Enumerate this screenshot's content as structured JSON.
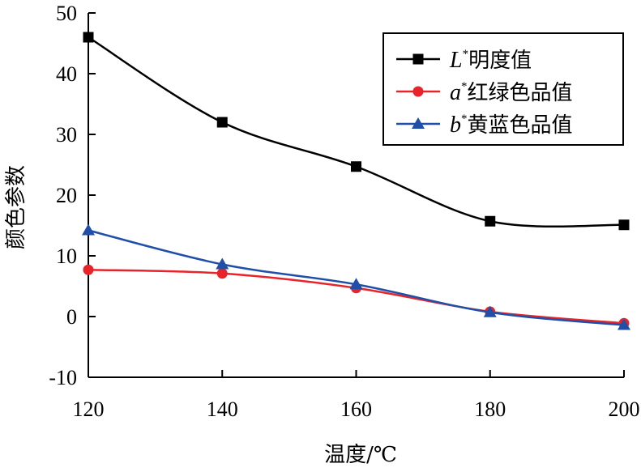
{
  "chart_data": {
    "type": "line",
    "title": "",
    "xlabel": "温度/℃",
    "ylabel": "颜色参数",
    "x": [
      120,
      140,
      160,
      180,
      200
    ],
    "xlim": [
      120,
      200
    ],
    "ylim": [
      -10,
      50
    ],
    "xticks": [
      "120",
      "140",
      "160",
      "180",
      "200"
    ],
    "yticks": [
      "-10",
      "0",
      "10",
      "20",
      "30",
      "40",
      "50"
    ],
    "grid": false,
    "legend_position": "top-right",
    "smooth": true,
    "series": [
      {
        "name_var": "L",
        "name_sup": "*",
        "name_text": "明度值",
        "marker": "square",
        "color": "#000000",
        "values": [
          46,
          32,
          24.7,
          15.7,
          15.1
        ]
      },
      {
        "name_var": "a",
        "name_sup": "*",
        "name_text": "红绿色品值",
        "marker": "circle",
        "color": "#e8242a",
        "values": [
          7.7,
          7.1,
          4.7,
          0.8,
          -1.1
        ]
      },
      {
        "name_var": "b",
        "name_sup": "*",
        "name_text": "黄蓝色品值",
        "marker": "triangle",
        "color": "#1f4fa8",
        "values": [
          14.2,
          8.6,
          5.3,
          0.7,
          -1.4
        ]
      }
    ]
  }
}
